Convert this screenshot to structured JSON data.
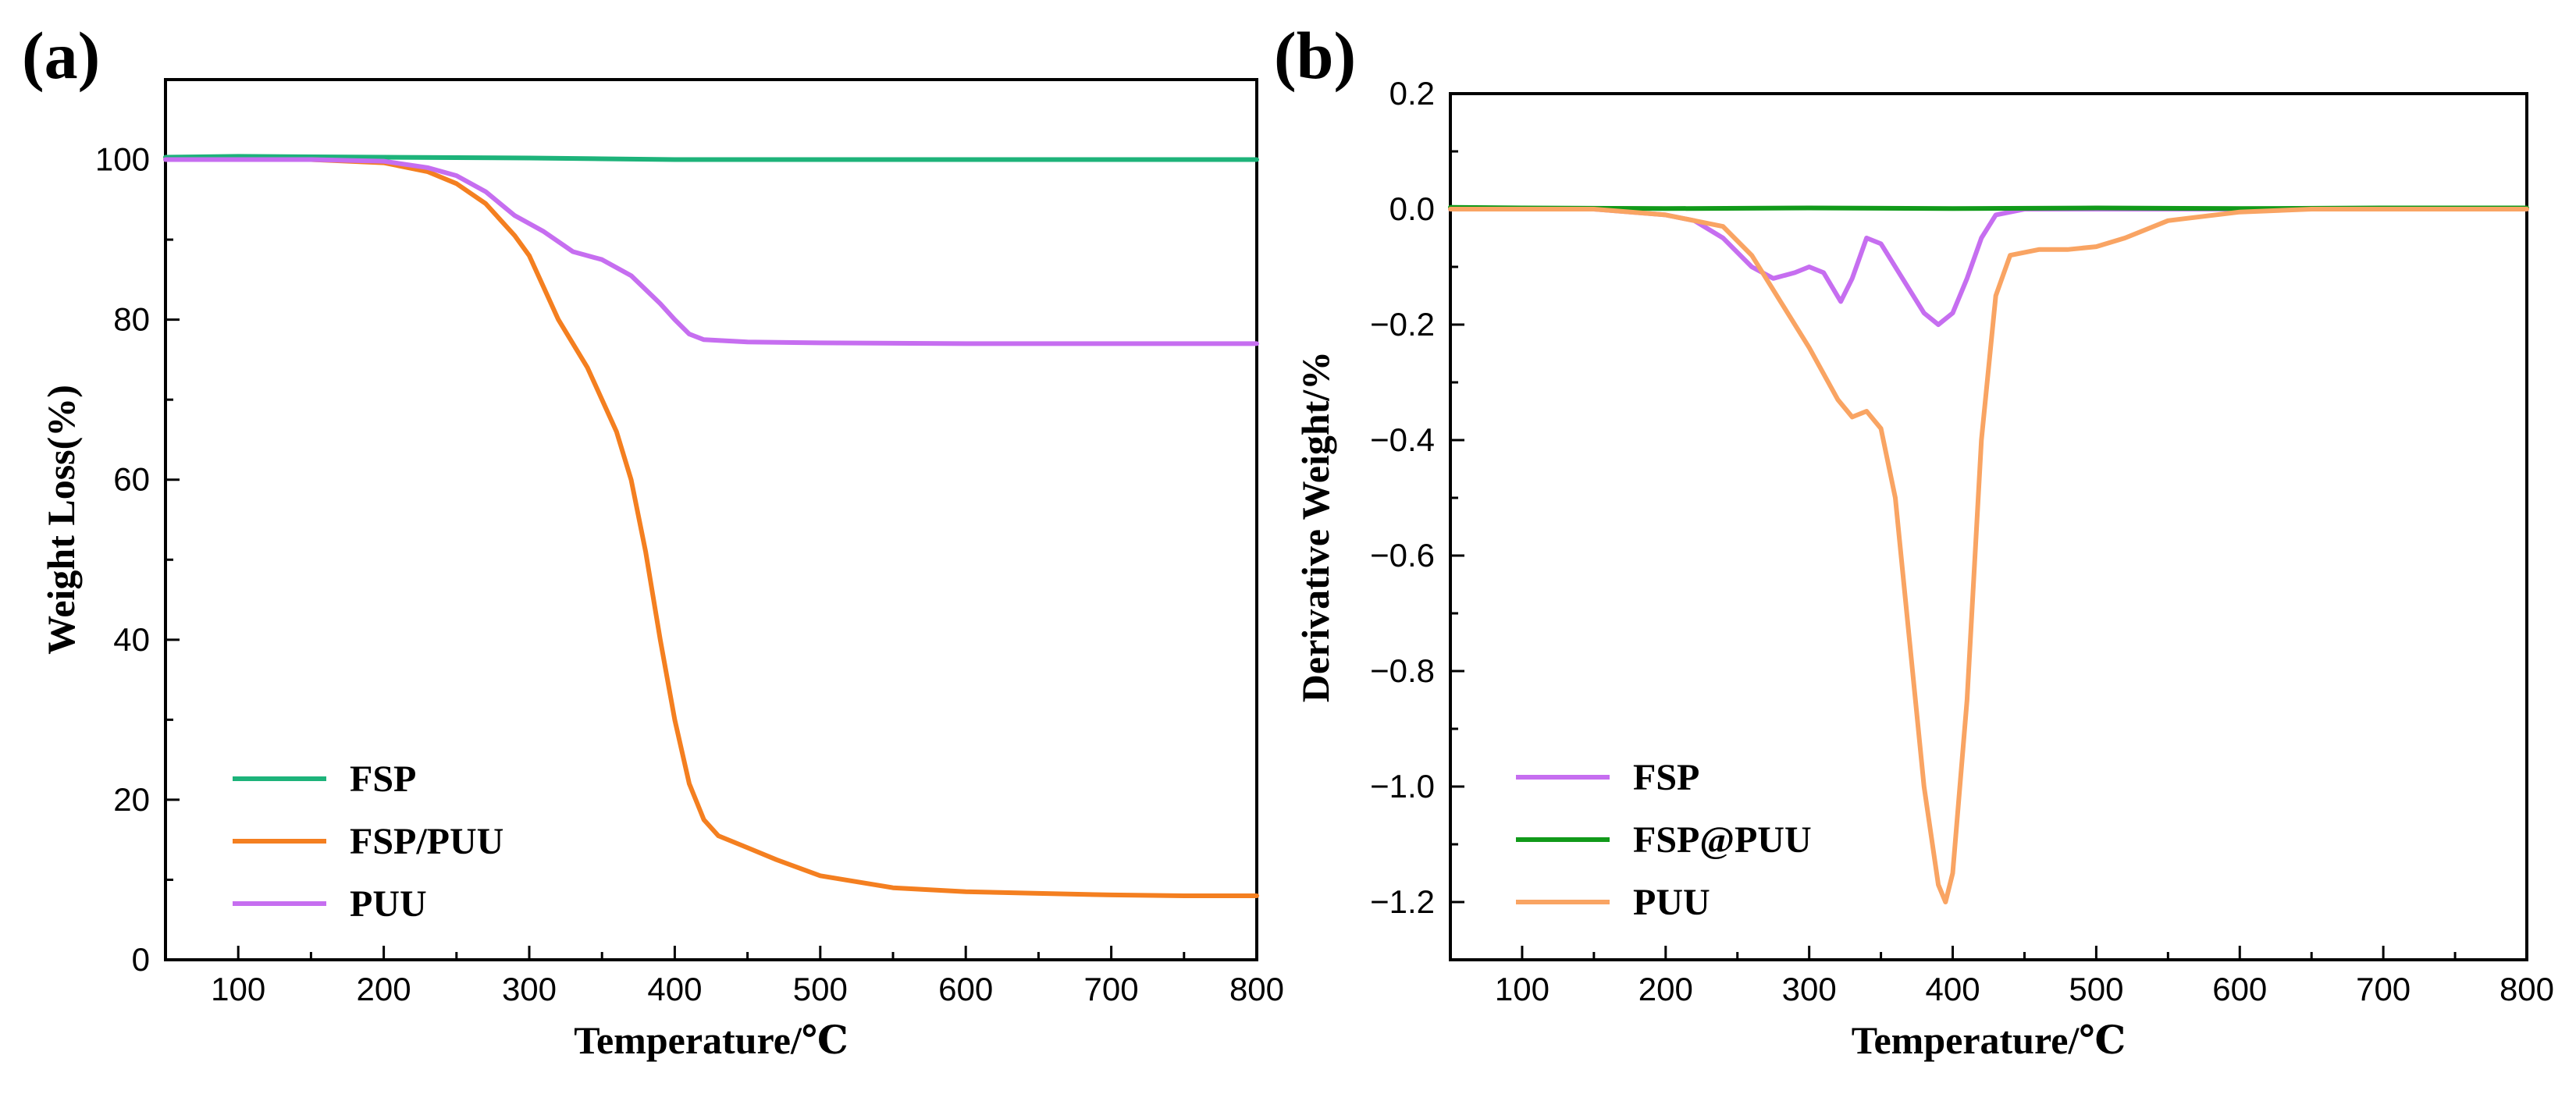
{
  "chart_data": [
    {
      "panel_label": "(a)",
      "type": "line",
      "xlabel": "Temperature/℃",
      "ylabel": "Weight Loss(%)",
      "xlim": [
        50,
        800
      ],
      "ylim": [
        0,
        110
      ],
      "xticks": [
        100,
        200,
        300,
        400,
        500,
        600,
        700,
        800
      ],
      "yticks": [
        0,
        20,
        40,
        60,
        80,
        100
      ],
      "legend_position": "bottom-left",
      "series": [
        {
          "name": "FSP",
          "color": "#1db37a",
          "points": [
            [
              50,
              100.3
            ],
            [
              100,
              100.4
            ],
            [
              200,
              100.3
            ],
            [
              300,
              100.2
            ],
            [
              350,
              100.1
            ],
            [
              400,
              100.0
            ],
            [
              500,
              100.0
            ],
            [
              600,
              100.0
            ],
            [
              700,
              100.0
            ],
            [
              800,
              100.0
            ]
          ]
        },
        {
          "name": "FSP/PUU",
          "color": "#f47f20",
          "points": [
            [
              50,
              100
            ],
            [
              100,
              100
            ],
            [
              150,
              100
            ],
            [
              200,
              99.6
            ],
            [
              230,
              98.5
            ],
            [
              250,
              97
            ],
            [
              270,
              94.5
            ],
            [
              290,
              90.5
            ],
            [
              300,
              88
            ],
            [
              320,
              80
            ],
            [
              340,
              74
            ],
            [
              360,
              66
            ],
            [
              370,
              60
            ],
            [
              380,
              51
            ],
            [
              390,
              40
            ],
            [
              400,
              30
            ],
            [
              410,
              22
            ],
            [
              420,
              17.5
            ],
            [
              430,
              15.5
            ],
            [
              450,
              14
            ],
            [
              470,
              12.5
            ],
            [
              500,
              10.5
            ],
            [
              550,
              9
            ],
            [
              600,
              8.5
            ],
            [
              650,
              8.3
            ],
            [
              700,
              8.1
            ],
            [
              750,
              8.0
            ],
            [
              800,
              8.0
            ]
          ]
        },
        {
          "name": "PUU",
          "color": "#c66ef0",
          "points": [
            [
              50,
              100
            ],
            [
              100,
              100
            ],
            [
              150,
              100
            ],
            [
              200,
              99.8
            ],
            [
              230,
              99
            ],
            [
              250,
              98
            ],
            [
              270,
              96
            ],
            [
              290,
              93
            ],
            [
              310,
              91
            ],
            [
              330,
              88.5
            ],
            [
              350,
              87.5
            ],
            [
              370,
              85.5
            ],
            [
              390,
              82
            ],
            [
              400,
              80
            ],
            [
              410,
              78.2
            ],
            [
              420,
              77.5
            ],
            [
              450,
              77.2
            ],
            [
              500,
              77.1
            ],
            [
              600,
              77.0
            ],
            [
              700,
              77.0
            ],
            [
              800,
              77.0
            ]
          ]
        }
      ]
    },
    {
      "panel_label": "(b)",
      "type": "line",
      "xlabel": "Temperature/℃",
      "ylabel": "Derivative Weight/%",
      "xlim": [
        50,
        800
      ],
      "ylim": [
        -1.3,
        0.2
      ],
      "xticks": [
        100,
        200,
        300,
        400,
        500,
        600,
        700,
        800
      ],
      "yticks": [
        0.2,
        0.0,
        -0.2,
        -0.4,
        -0.6,
        -0.8,
        -1.0,
        -1.2
      ],
      "ytick_labels": [
        "0.2",
        "0.0",
        "−0.2",
        "−0.4",
        "−0.6",
        "−0.8",
        "−1.0",
        "−1.2"
      ],
      "legend_position": "bottom-left",
      "series": [
        {
          "name": "FSP",
          "color": "#c66ef0",
          "points": [
            [
              50,
              0
            ],
            [
              150,
              0
            ],
            [
              200,
              -0.01
            ],
            [
              220,
              -0.02
            ],
            [
              240,
              -0.05
            ],
            [
              260,
              -0.1
            ],
            [
              275,
              -0.12
            ],
            [
              290,
              -0.11
            ],
            [
              300,
              -0.1
            ],
            [
              310,
              -0.11
            ],
            [
              322,
              -0.16
            ],
            [
              330,
              -0.12
            ],
            [
              340,
              -0.05
            ],
            [
              350,
              -0.06
            ],
            [
              365,
              -0.12
            ],
            [
              380,
              -0.18
            ],
            [
              390,
              -0.2
            ],
            [
              400,
              -0.18
            ],
            [
              410,
              -0.12
            ],
            [
              420,
              -0.05
            ],
            [
              430,
              -0.01
            ],
            [
              450,
              0
            ],
            [
              800,
              0
            ]
          ]
        },
        {
          "name": "FSP@PUU",
          "color": "#119a1a",
          "points": [
            [
              50,
              0.003
            ],
            [
              100,
              0.002
            ],
            [
              200,
              0.001
            ],
            [
              300,
              0.002
            ],
            [
              400,
              0.001
            ],
            [
              500,
              0.002
            ],
            [
              600,
              0.001
            ],
            [
              700,
              0.002
            ],
            [
              800,
              0.002
            ]
          ]
        },
        {
          "name": "PUU",
          "color": "#f9a463",
          "points": [
            [
              50,
              0
            ],
            [
              150,
              0
            ],
            [
              200,
              -0.01
            ],
            [
              240,
              -0.03
            ],
            [
              260,
              -0.08
            ],
            [
              280,
              -0.16
            ],
            [
              300,
              -0.24
            ],
            [
              320,
              -0.33
            ],
            [
              330,
              -0.36
            ],
            [
              340,
              -0.35
            ],
            [
              350,
              -0.38
            ],
            [
              360,
              -0.5
            ],
            [
              370,
              -0.75
            ],
            [
              380,
              -1.0
            ],
            [
              390,
              -1.17
            ],
            [
              395,
              -1.2
            ],
            [
              400,
              -1.15
            ],
            [
              410,
              -0.85
            ],
            [
              420,
              -0.4
            ],
            [
              430,
              -0.15
            ],
            [
              440,
              -0.08
            ],
            [
              460,
              -0.07
            ],
            [
              480,
              -0.07
            ],
            [
              500,
              -0.065
            ],
            [
              520,
              -0.05
            ],
            [
              550,
              -0.02
            ],
            [
              600,
              -0.005
            ],
            [
              650,
              0
            ],
            [
              800,
              0
            ]
          ]
        }
      ]
    }
  ]
}
